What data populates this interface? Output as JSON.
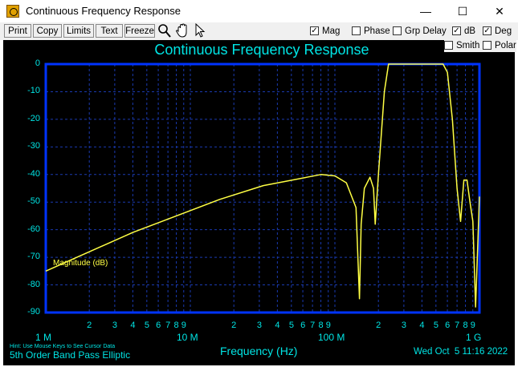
{
  "window": {
    "title": "Continuous Frequency Response",
    "minimize": "—",
    "maximize": "☐",
    "close": "✕"
  },
  "toolbar": {
    "buttons": [
      "Print",
      "Copy",
      "Limits",
      "Text",
      "Freeze"
    ],
    "checks_row1": [
      {
        "label": "Mag",
        "checked": true
      },
      {
        "label": "Phase",
        "checked": false
      },
      {
        "label": "Grp Delay",
        "checked": false
      },
      {
        "label": "dB",
        "checked": true
      },
      {
        "label": "Deg",
        "checked": true
      }
    ],
    "checks_row2": [
      {
        "label": "Smith",
        "checked": false
      },
      {
        "label": "Polar",
        "checked": false
      }
    ],
    "icons": [
      "zoom-icon",
      "hand-pan-icon",
      "pointer-icon"
    ]
  },
  "chart_data": {
    "type": "line",
    "title": "Continuous Frequency Response",
    "xlabel": "Frequency (Hz)",
    "ylabel": "",
    "xscale": "log",
    "xlim": [
      1000000,
      1000000000
    ],
    "ylim": [
      -90,
      0
    ],
    "y_ticks": [
      "0",
      "-10",
      "-20",
      "-30",
      "-40",
      "-50",
      "-60",
      "-70",
      "-80",
      "-90"
    ],
    "x_major_ticks": [
      "1 M",
      "10 M",
      "100 M",
      "1 G"
    ],
    "x_minor_ticks": [
      "2",
      "3",
      "4",
      "5",
      "6",
      "7",
      "8",
      "9"
    ],
    "grid": true,
    "series": [
      {
        "name": "Magnitude (dB)",
        "color": "#ffff44",
        "x": [
          1000000,
          2000000,
          4000000,
          8000000,
          16000000,
          32000000,
          64000000,
          80000000,
          100000000,
          120000000,
          140000000,
          148000000,
          152000000,
          160000000,
          175000000,
          185000000,
          190000000,
          200000000,
          220000000,
          235000000,
          260000000,
          300000000,
          400000000,
          500000000,
          560000000,
          600000000,
          650000000,
          700000000,
          740000000,
          780000000,
          820000000,
          860000000,
          900000000,
          940000000,
          1000000000
        ],
        "values": [
          -75,
          -68,
          -61,
          -55,
          -49,
          -44,
          -41,
          -40,
          -40.5,
          -43,
          -52,
          -85,
          -58,
          -45,
          -41,
          -45,
          -58,
          -40,
          -10,
          0,
          0,
          0,
          0,
          0,
          0,
          -3,
          -20,
          -45,
          -57,
          -42,
          -42,
          -50,
          -57,
          -88,
          -48
        ]
      }
    ]
  },
  "footer": {
    "hint": "Hint: Use Mouse Keys to See Cursor Data",
    "filter_name": "5th Order Band Pass Elliptic",
    "timestamp": "Wed Oct  5 11:16 2022"
  },
  "colors": {
    "background": "#000000",
    "axis_text": "#00e5e5",
    "frame": "#0033ff",
    "grid": "#1a3ab0",
    "trace": "#ffff44"
  }
}
